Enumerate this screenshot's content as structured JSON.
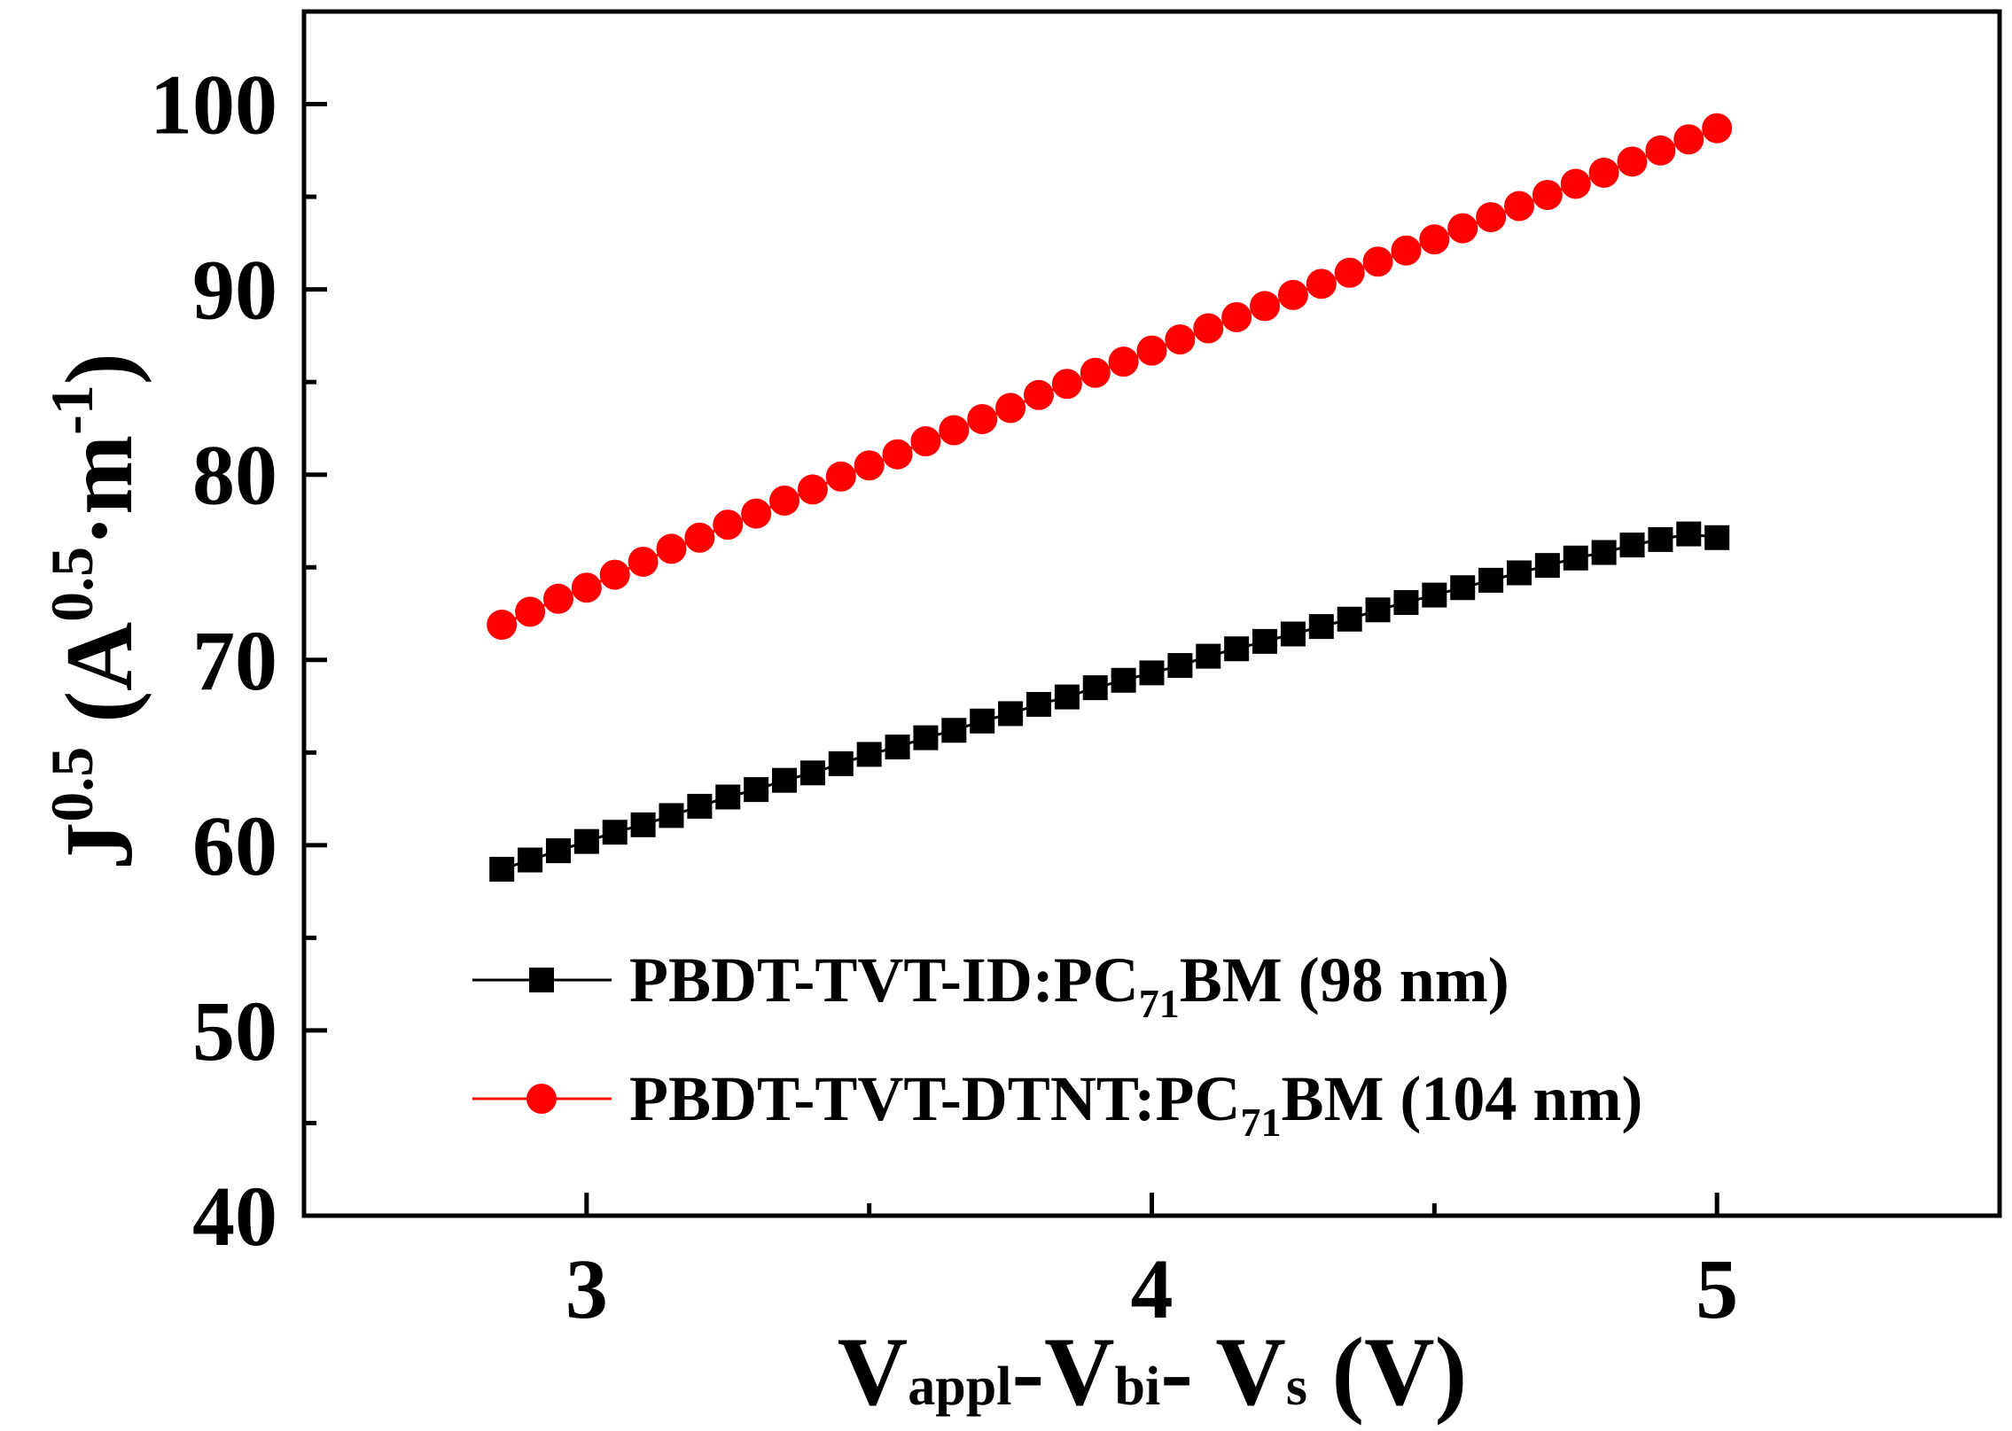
{
  "chart_data": {
    "type": "scatter",
    "title": "",
    "xlabel": {
      "main": "V",
      "parts": [
        {
          "base": "V",
          "sub": "appl"
        },
        {
          "sep": "-"
        },
        {
          "base": "V",
          "sub": "bi"
        },
        {
          "sep": "- "
        },
        {
          "base": "V",
          "sub": "s"
        },
        {
          "tail": " (V)"
        }
      ]
    },
    "ylabel": {
      "base": "J",
      "sup": "0.5",
      "unit_open": " (A",
      "unit_sup1": "0.5",
      "unit_mid": "·m",
      "unit_sup2": "-1",
      "unit_close": ")"
    },
    "xlim": [
      2.5,
      5.5
    ],
    "ylim": [
      40,
      105
    ],
    "xticks": [
      3,
      4,
      5
    ],
    "xticks_minor": [
      3.5,
      4.5
    ],
    "yticks": [
      40,
      50,
      60,
      70,
      80,
      90,
      100
    ],
    "yticks_minor": [
      45,
      55,
      65,
      75,
      85,
      95
    ],
    "x_tick_labels": [
      "3",
      "4",
      "5"
    ],
    "y_tick_labels": [
      "40",
      "50",
      "60",
      "70",
      "80",
      "90",
      "100"
    ],
    "legend_position": "lower-left",
    "series": [
      {
        "name": "PBDT-TVT-ID:PC71BM (98 nm)",
        "label_pre": "PBDT-TVT-ID:PC",
        "label_sub": "71",
        "label_post": "BM (98 nm)",
        "marker": "square",
        "color": "#000000",
        "x": [
          2.85,
          2.9,
          2.95,
          3.0,
          3.05,
          3.1,
          3.15,
          3.2,
          3.25,
          3.3,
          3.35,
          3.4,
          3.45,
          3.5,
          3.55,
          3.6,
          3.65,
          3.7,
          3.75,
          3.8,
          3.85,
          3.9,
          3.95,
          4.0,
          4.05,
          4.1,
          4.15,
          4.2,
          4.25,
          4.3,
          4.35,
          4.4,
          4.45,
          4.5,
          4.55,
          4.6,
          4.65,
          4.7,
          4.75,
          4.8,
          4.85,
          4.9,
          4.95,
          5.0
        ],
        "y": [
          58.7,
          59.2,
          59.7,
          60.2,
          60.7,
          61.1,
          61.6,
          62.1,
          62.6,
          63.0,
          63.5,
          63.9,
          64.4,
          64.9,
          65.3,
          65.8,
          66.2,
          66.7,
          67.1,
          67.6,
          68.0,
          68.5,
          68.9,
          69.3,
          69.7,
          70.2,
          70.6,
          71.0,
          71.4,
          71.8,
          72.2,
          72.7,
          73.1,
          73.5,
          73.9,
          74.3,
          74.7,
          75.1,
          75.5,
          75.8,
          76.2,
          76.5,
          76.8,
          76.6
        ]
      },
      {
        "name": "PBDT-TVT-DTNT:PC71BM (104 nm)",
        "label_pre": "PBDT-TVT-DTNT:PC",
        "label_sub": "71",
        "label_post": "BM (104 nm)",
        "marker": "circle",
        "color": "#ff0000",
        "x": [
          2.85,
          2.9,
          2.95,
          3.0,
          3.05,
          3.1,
          3.15,
          3.2,
          3.25,
          3.3,
          3.35,
          3.4,
          3.45,
          3.5,
          3.55,
          3.6,
          3.65,
          3.7,
          3.75,
          3.8,
          3.85,
          3.9,
          3.95,
          4.0,
          4.05,
          4.1,
          4.15,
          4.2,
          4.25,
          4.3,
          4.35,
          4.4,
          4.45,
          4.5,
          4.55,
          4.6,
          4.65,
          4.7,
          4.75,
          4.8,
          4.85,
          4.9,
          4.95,
          5.0
        ],
        "y": [
          71.9,
          72.6,
          73.3,
          73.9,
          74.6,
          75.3,
          76.0,
          76.6,
          77.3,
          77.9,
          78.6,
          79.2,
          79.9,
          80.5,
          81.1,
          81.8,
          82.4,
          83.0,
          83.6,
          84.3,
          84.9,
          85.5,
          86.1,
          86.7,
          87.3,
          87.9,
          88.5,
          89.1,
          89.7,
          90.3,
          90.9,
          91.5,
          92.1,
          92.7,
          93.3,
          93.9,
          94.5,
          95.1,
          95.7,
          96.3,
          96.9,
          97.5,
          98.1,
          98.7
        ]
      }
    ]
  }
}
